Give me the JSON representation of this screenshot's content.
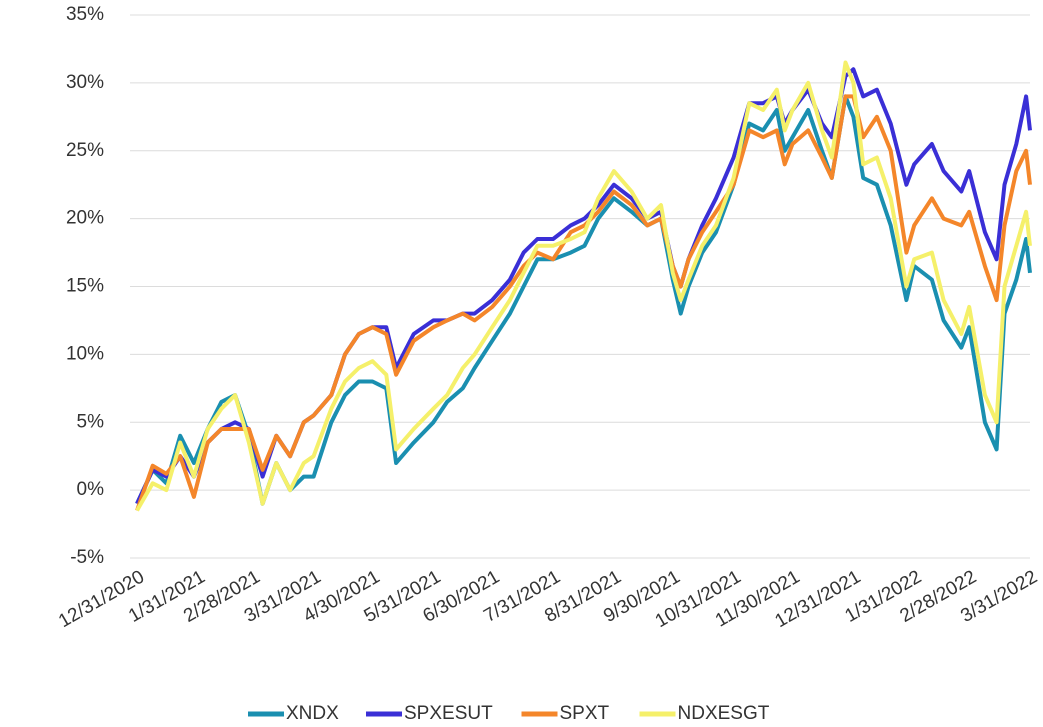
{
  "chart_data": {
    "type": "line",
    "x": [
      "12/31/2020",
      "1/8/2021",
      "1/15/2021",
      "1/22/2021",
      "1/29/2021",
      "2/5/2021",
      "2/12/2021",
      "2/19/2021",
      "2/26/2021",
      "3/5/2021",
      "3/12/2021",
      "3/19/2021",
      "3/26/2021",
      "3/31/2021",
      "4/9/2021",
      "4/16/2021",
      "4/23/2021",
      "4/30/2021",
      "5/7/2021",
      "5/12/2021",
      "5/21/2021",
      "5/31/2021",
      "6/7/2021",
      "6/15/2021",
      "6/21/2021",
      "6/30/2021",
      "7/9/2021",
      "7/16/2021",
      "7/23/2021",
      "7/31/2021",
      "8/9/2021",
      "8/16/2021",
      "8/23/2021",
      "8/31/2021",
      "9/9/2021",
      "9/17/2021",
      "9/24/2021",
      "9/30/2021",
      "10/4/2021",
      "10/8/2021",
      "10/15/2021",
      "10/22/2021",
      "10/31/2021",
      "11/8/2021",
      "11/15/2021",
      "11/22/2021",
      "11/26/2021",
      "11/30/2021",
      "12/8/2021",
      "12/15/2021",
      "12/20/2021",
      "12/27/2021",
      "12/31/2021",
      "1/5/2022",
      "1/12/2022",
      "1/19/2022",
      "1/27/2022",
      "1/31/2022",
      "2/9/2022",
      "2/15/2022",
      "2/24/2022",
      "2/28/2022",
      "3/8/2022",
      "3/14/2022",
      "3/18/2022",
      "3/24/2022",
      "3/29/2022",
      "3/31/2022"
    ],
    "series": [
      {
        "name": "XNDX",
        "color": "#1a8fb0",
        "values": [
          -1,
          1.5,
          0.5,
          4,
          2,
          4.5,
          6.5,
          7,
          4,
          -1,
          2,
          0,
          1,
          1,
          5,
          7,
          8,
          8,
          7.5,
          2,
          3.5,
          5,
          6.5,
          7.5,
          9,
          11,
          13,
          15,
          17,
          17,
          17.5,
          18,
          20,
          21.5,
          20.5,
          19.5,
          20,
          15.5,
          13,
          15,
          17.5,
          19,
          22.5,
          27,
          26.5,
          28,
          25,
          26,
          28,
          25,
          23,
          29,
          27.5,
          23,
          22.5,
          19.5,
          14,
          16.5,
          15.5,
          12.5,
          10.5,
          12,
          5,
          3,
          13,
          15.5,
          18.5,
          16
        ]
      },
      {
        "name": "SPXESUT",
        "color": "#3a2fd6",
        "values": [
          -1,
          1.5,
          1,
          2.5,
          1,
          3.5,
          4.5,
          5,
          4.5,
          1,
          4,
          2.5,
          5,
          5.5,
          7,
          10,
          11.5,
          12,
          12,
          9,
          11.5,
          12.5,
          12.5,
          13,
          13,
          14,
          15.5,
          17.5,
          18.5,
          18.5,
          19.5,
          20,
          21,
          22.5,
          21.5,
          20,
          20.5,
          16.5,
          15,
          17,
          19.5,
          21.5,
          24.5,
          28.5,
          28.5,
          29,
          27,
          28,
          29.5,
          27,
          26,
          30.5,
          31,
          29,
          29.5,
          27,
          22.5,
          24,
          25.5,
          23.5,
          22,
          23.5,
          19,
          17,
          22.5,
          25.5,
          29,
          26.5
        ]
      },
      {
        "name": "SPXT",
        "color": "#f4862a",
        "values": [
          -1.5,
          1.8,
          1.2,
          2.5,
          -0.5,
          3.5,
          4.5,
          4.5,
          4.5,
          1.5,
          4,
          2.5,
          5,
          5.5,
          7,
          10,
          11.5,
          12,
          11.5,
          8.5,
          11,
          12,
          12.5,
          13,
          12.5,
          13.5,
          15,
          16.5,
          17.5,
          17,
          19,
          19.5,
          20.5,
          22,
          21,
          19.5,
          20,
          16.5,
          15,
          17,
          19,
          20.5,
          22.5,
          26.5,
          26,
          26.5,
          24,
          25.5,
          26.5,
          24.5,
          23,
          29,
          29,
          26,
          27.5,
          25,
          17.5,
          19.5,
          21.5,
          20,
          19.5,
          20.5,
          16.5,
          14,
          19.5,
          23.5,
          25,
          22.5
        ]
      },
      {
        "name": "NDXESGT",
        "color": "#f5f06a",
        "values": [
          -1.5,
          0.5,
          0,
          3.5,
          1,
          4.5,
          6,
          7,
          3.5,
          -1,
          2,
          0,
          2,
          2.5,
          6,
          8,
          9,
          9.5,
          8.5,
          3,
          4.5,
          6,
          7,
          9,
          10,
          12,
          14,
          16,
          18,
          18,
          18.5,
          19,
          21.5,
          23.5,
          22,
          20,
          21,
          16,
          14,
          15.5,
          18,
          19.5,
          23,
          28.5,
          28,
          29.5,
          26.5,
          28,
          30,
          26.5,
          24.5,
          31.5,
          30,
          24,
          24.5,
          21.5,
          15,
          17,
          17.5,
          14,
          11.5,
          13.5,
          7,
          5,
          15,
          18,
          20.5,
          18
        ]
      }
    ],
    "ylim": [
      -5,
      35
    ],
    "yticks": [
      {
        "value": -5,
        "label": "-5%"
      },
      {
        "value": 0,
        "label": "0%"
      },
      {
        "value": 5,
        "label": "5%"
      },
      {
        "value": 10,
        "label": "10%"
      },
      {
        "value": 15,
        "label": "15%"
      },
      {
        "value": 20,
        "label": "20%"
      },
      {
        "value": 25,
        "label": "25%"
      },
      {
        "value": 30,
        "label": "30%"
      },
      {
        "value": 35,
        "label": "35%"
      }
    ],
    "xlim": [
      "12/31/2020",
      "3/31/2022"
    ],
    "xticks": [
      "12/31/2020",
      "1/31/2021",
      "2/28/2021",
      "3/31/2021",
      "4/30/2021",
      "5/31/2021",
      "6/30/2021",
      "7/31/2021",
      "8/31/2021",
      "9/30/2021",
      "10/31/2021",
      "11/30/2021",
      "12/31/2021",
      "1/31/2022",
      "2/28/2022",
      "3/31/2022"
    ],
    "grid": true,
    "legend": "bottom"
  }
}
